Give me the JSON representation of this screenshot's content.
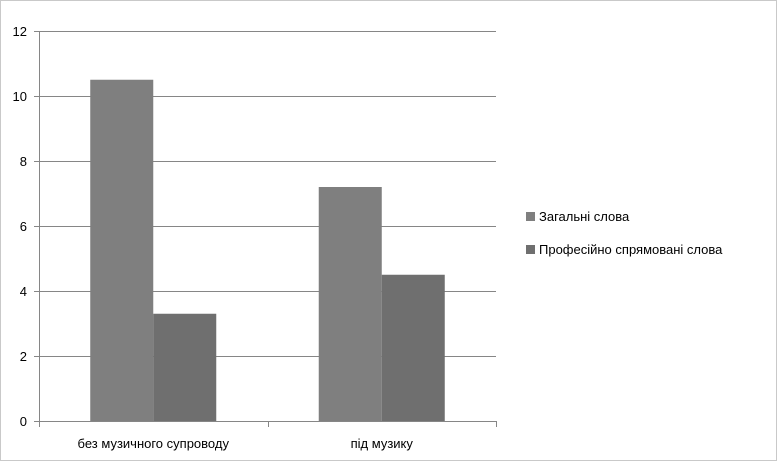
{
  "chart_data": {
    "type": "bar",
    "categories": [
      "без музичного супроводу",
      "під музику"
    ],
    "series": [
      {
        "name": "Загальні слова",
        "values": [
          10.5,
          7.2
        ],
        "color": "#7f7f7f"
      },
      {
        "name": "Професійно спрямовані слова",
        "values": [
          3.3,
          4.5
        ],
        "color": "#6f6f6f"
      }
    ],
    "title": "",
    "xlabel": "",
    "ylabel": "",
    "ylim": [
      0,
      12
    ],
    "yticks": [
      0,
      2,
      4,
      6,
      8,
      10,
      12
    ],
    "grid": true,
    "legend_position": "right",
    "colors": {
      "gridline": "#868686",
      "axis": "#868686",
      "background": "#ffffff"
    }
  }
}
